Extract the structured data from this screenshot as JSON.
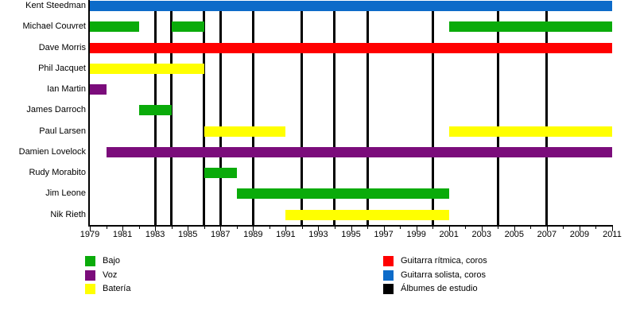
{
  "chart_data": {
    "type": "timeline",
    "title": "",
    "x_axis": {
      "start": 1979,
      "end": 2011,
      "tick_step": 2,
      "minor_tick_step": 1,
      "tick_labels": [
        "1979",
        "1981",
        "1983",
        "1985",
        "1987",
        "1989",
        "1991",
        "1993",
        "1995",
        "1997",
        "1999",
        "2001",
        "2003",
        "2005",
        "2007",
        "2009",
        "2011"
      ]
    },
    "members": [
      {
        "name": "Kent Steedman",
        "role": "Guitarra solista, coros",
        "color": "#0D6BC9",
        "segments": [
          [
            1979,
            2011
          ]
        ]
      },
      {
        "name": "Michael Couvret",
        "role": "Bajo",
        "color": "#0AAB0A",
        "segments": [
          [
            1979,
            1982
          ],
          [
            1984,
            1986
          ],
          [
            2001,
            2011
          ]
        ]
      },
      {
        "name": "Dave Morris",
        "role": "Guitarra rítmica, coros",
        "color": "#FF0000",
        "segments": [
          [
            1979,
            2011
          ]
        ]
      },
      {
        "name": "Phil Jacquet",
        "role": "Batería",
        "color": "#FFFF00",
        "segments": [
          [
            1979,
            1986
          ]
        ]
      },
      {
        "name": "Ian Martin",
        "role": "Voz",
        "color": "#7B0C7B",
        "segments": [
          [
            1979,
            1980
          ]
        ]
      },
      {
        "name": "James Darroch",
        "role": "Bajo",
        "color": "#0AAB0A",
        "segments": [
          [
            1982,
            1984
          ]
        ]
      },
      {
        "name": "Paul Larsen",
        "role": "Batería",
        "color": "#FFFF00",
        "segments": [
          [
            1986,
            1991
          ],
          [
            2001,
            2011
          ]
        ]
      },
      {
        "name": "Damien Lovelock",
        "role": "Voz",
        "color": "#7B0C7B",
        "segments": [
          [
            1980,
            2011
          ]
        ]
      },
      {
        "name": "Rudy Morabito",
        "role": "Bajo",
        "color": "#0AAB0A",
        "segments": [
          [
            1986,
            1988
          ]
        ]
      },
      {
        "name": "Jim Leone",
        "role": "Bajo",
        "color": "#0AAB0A",
        "segments": [
          [
            1988,
            2001
          ]
        ]
      },
      {
        "name": "Nik Rieth",
        "role": "Batería",
        "color": "#FFFF00",
        "segments": [
          [
            1991,
            2001
          ]
        ]
      }
    ],
    "album_lines": {
      "label": "Álbumes de estudio",
      "color": "#000000",
      "years": [
        1983,
        1984,
        1986,
        1987,
        1989,
        1992,
        1994,
        1996,
        2000,
        2004,
        2007
      ]
    },
    "legend": {
      "left": [
        {
          "label": "Bajo",
          "color": "#0AAB0A"
        },
        {
          "label": "Voz",
          "color": "#7B0C7B"
        },
        {
          "label": "Batería",
          "color": "#FFFF00"
        }
      ],
      "right": [
        {
          "label": "Guitarra rítmica, coros",
          "color": "#FF0000"
        },
        {
          "label": "Guitarra solista, coros",
          "color": "#0D6BC9"
        },
        {
          "label": "Álbumes de estudio",
          "color": "#000000"
        }
      ]
    }
  }
}
